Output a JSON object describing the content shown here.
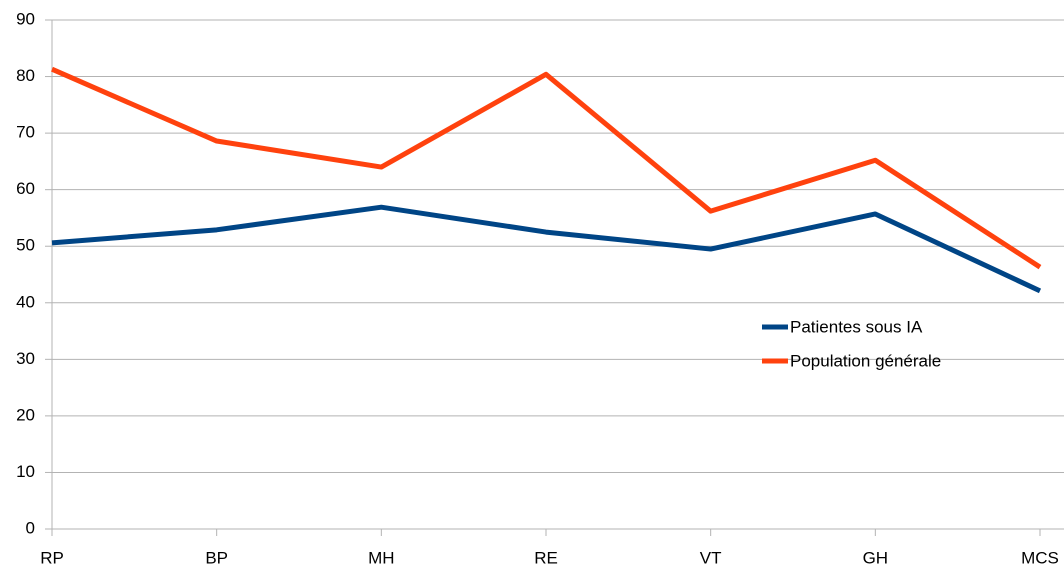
{
  "chart_data": {
    "type": "line",
    "categories": [
      "RP",
      "BP",
      "MH",
      "RE",
      "VT",
      "GH",
      "MCS"
    ],
    "series": [
      {
        "name": "Patientes sous IA",
        "color": "#004586",
        "values": [
          50.6,
          52.9,
          56.9,
          52.5,
          49.5,
          55.7,
          42.1
        ]
      },
      {
        "name": "Population générale",
        "color": "#ff420e",
        "values": [
          81.3,
          68.6,
          64.0,
          80.4,
          56.2,
          65.2,
          46.3
        ]
      }
    ],
    "ylim": [
      0,
      90
    ],
    "yticks": [
      0,
      10,
      20,
      30,
      40,
      50,
      60,
      70,
      80,
      90
    ],
    "grid": true,
    "legend": "right"
  }
}
